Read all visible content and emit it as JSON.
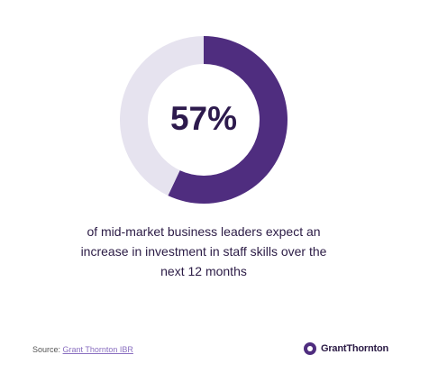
{
  "chart_data": {
    "type": "donut",
    "values": [
      57,
      43
    ],
    "value_labels": [
      "57%",
      null
    ],
    "colors": [
      "#4f2d7f",
      "#e6e3ef"
    ],
    "caption": "of mid-market business leaders expect an increase in investment in staff skills over the next 12 months"
  },
  "source": {
    "label": "Source:",
    "link": "Grant Thornton IBR"
  },
  "logo": "GrantThornton"
}
